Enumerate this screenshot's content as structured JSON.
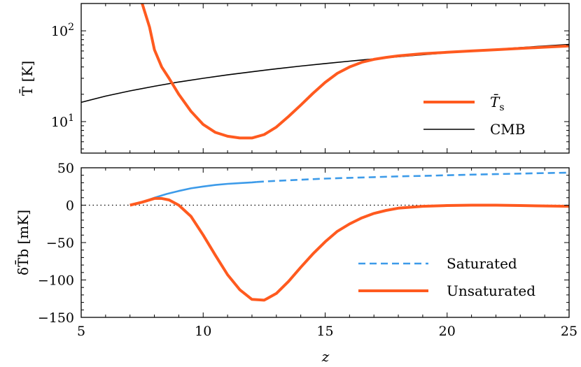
{
  "chart_data": [
    {
      "type": "line",
      "panel": "top",
      "yscale": "log",
      "ylim": [
        4.5,
        200
      ],
      "xlim": [
        5,
        25
      ],
      "ylabel": "T̄ [K]",
      "ytick_labels": [
        {
          "value": 100,
          "base": "10",
          "exp": "2"
        },
        {
          "value": 10,
          "base": "10",
          "exp": "1"
        }
      ],
      "grid": false,
      "legend": "lower-right",
      "series": [
        {
          "name": "T̄",
          "name_sub": "s",
          "color": "#ff5a1f",
          "style": "solid",
          "x": [
            7.5,
            7.8,
            8.0,
            8.3,
            8.6,
            9.0,
            9.5,
            10.0,
            10.5,
            11.0,
            11.5,
            12.0,
            12.5,
            13.0,
            13.5,
            14.0,
            14.5,
            15.0,
            15.5,
            16.0,
            16.5,
            17.0,
            17.5,
            18.0,
            19.0,
            20.0,
            21.0,
            22.0,
            23.0,
            24.0,
            25.0
          ],
          "y": [
            200,
            110,
            62,
            40,
            30,
            20,
            13,
            9.3,
            7.6,
            6.9,
            6.6,
            6.6,
            7.2,
            8.7,
            11.4,
            15.2,
            20.5,
            27,
            34,
            40,
            45,
            48.5,
            51,
            53,
            56,
            58,
            60,
            62,
            64,
            66,
            68
          ]
        },
        {
          "name": "CMB",
          "color": "#000000",
          "style": "solid",
          "x": [
            5,
            6,
            7,
            8,
            9,
            10,
            11,
            12,
            13,
            14,
            15,
            16,
            17,
            18,
            19,
            20,
            21,
            22,
            23,
            24,
            25
          ],
          "y": [
            16.3,
            19.1,
            21.8,
            24.5,
            27.3,
            30.0,
            32.7,
            35.4,
            38.2,
            40.9,
            43.6,
            46.3,
            49.1,
            51.8,
            54.5,
            57.2,
            60.0,
            62.7,
            65.4,
            68.1,
            70.8
          ]
        }
      ]
    },
    {
      "type": "line",
      "panel": "bottom",
      "xlim": [
        5,
        25
      ],
      "ylim": [
        -150,
        50
      ],
      "xlabel": "z",
      "ylabel": "δT̄b [mK]",
      "xticks": [
        5,
        10,
        15,
        20,
        25
      ],
      "yticks": [
        50,
        0,
        -50,
        -100,
        -150
      ],
      "ytick_labels": [
        "50",
        "0",
        "−50",
        "−100",
        "−150"
      ],
      "zero_line": true,
      "grid": false,
      "legend": "lower-right",
      "series": [
        {
          "name": "Saturated",
          "color": "#3d9be9",
          "style": "solid-then-dashed",
          "dash_from_x": 12.2,
          "x": [
            7.0,
            7.5,
            8.0,
            8.5,
            9.0,
            9.5,
            10.0,
            10.5,
            11.0,
            11.5,
            12.0,
            12.2,
            13,
            14,
            15,
            16,
            17,
            18,
            19,
            20,
            21,
            22,
            23,
            24,
            25
          ],
          "y": [
            0,
            4,
            10,
            15,
            19,
            22.5,
            25,
            27,
            28.5,
            29.5,
            30.5,
            31,
            32.5,
            34,
            35.5,
            36.5,
            37.5,
            38.5,
            39.2,
            40,
            40.8,
            41.5,
            42.2,
            42.9,
            43.5
          ]
        },
        {
          "name": "Unsaturated",
          "color": "#ff5a1f",
          "style": "solid",
          "x": [
            7.0,
            7.5,
            8.0,
            8.3,
            8.6,
            9.0,
            9.5,
            10.0,
            10.5,
            11.0,
            11.5,
            12.0,
            12.5,
            13.0,
            13.5,
            14.0,
            14.5,
            15.0,
            15.5,
            16.0,
            16.5,
            17.0,
            17.5,
            18.0,
            19.0,
            20.0,
            21.0,
            22.0,
            23.0,
            24.0,
            25.0
          ],
          "y": [
            0,
            4,
            9,
            9,
            7,
            0,
            -15,
            -40,
            -67,
            -93,
            -113,
            -126,
            -127,
            -118,
            -102,
            -83,
            -65,
            -49,
            -35,
            -25,
            -17,
            -11,
            -7,
            -4,
            -1.5,
            -0.5,
            0,
            0,
            -0.5,
            -1,
            -1.5
          ]
        }
      ]
    }
  ]
}
